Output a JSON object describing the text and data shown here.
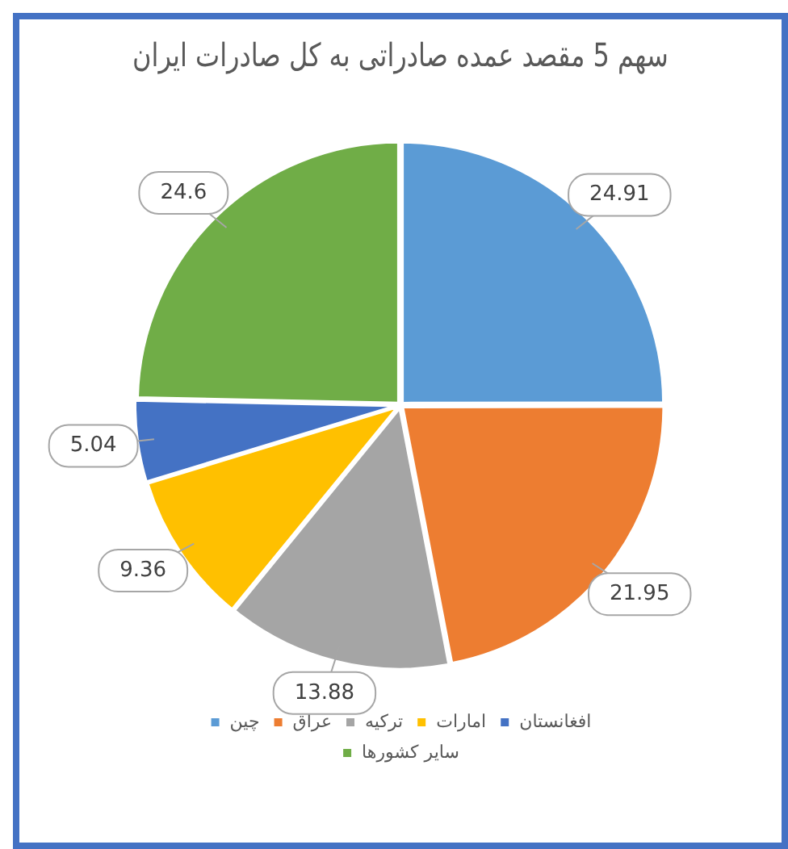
{
  "chart_data": {
    "type": "pie",
    "title": "سهم 5 مقصد عمده صادراتی به کل صادرات ایران",
    "categories": [
      "چین",
      "عراق",
      "ترکیه",
      "امارات",
      "افغانستان",
      "سایر کشورها"
    ],
    "values": [
      24.91,
      21.95,
      13.88,
      9.36,
      5.04,
      24.6
    ],
    "colors": [
      "#5b9bd5",
      "#ed7d31",
      "#a5a5a5",
      "#ffc000",
      "#4472c4",
      "#70ad47"
    ],
    "data_labels": true,
    "legend": "bottom"
  }
}
